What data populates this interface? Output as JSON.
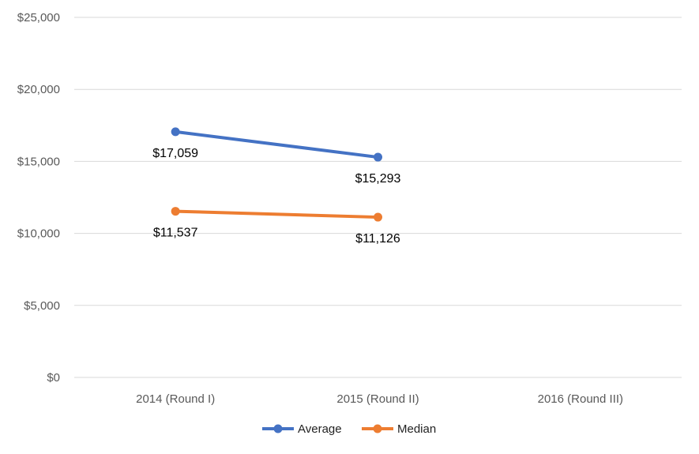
{
  "chart_data": {
    "type": "line",
    "categories": [
      "2014 (Round I)",
      "2015 (Round II)",
      "2016 (Round III)"
    ],
    "series": [
      {
        "name": "Average",
        "values": [
          17059,
          15293,
          null
        ],
        "labels": [
          "$17,059",
          "$15,293",
          null
        ],
        "color": "#4472C4"
      },
      {
        "name": "Median",
        "values": [
          11537,
          11126,
          null
        ],
        "labels": [
          "$11,537",
          "$11,126",
          null
        ],
        "color": "#ED7D31"
      }
    ],
    "y_ticks": [
      0,
      5000,
      10000,
      15000,
      20000,
      25000
    ],
    "y_tick_labels": [
      "$0",
      "$5,000",
      "$10,000",
      "$15,000",
      "$20,000",
      "$25,000"
    ],
    "ylim": [
      0,
      25000
    ],
    "grid": true,
    "legend": "bottom",
    "title": "",
    "xlabel": "",
    "ylabel": ""
  }
}
